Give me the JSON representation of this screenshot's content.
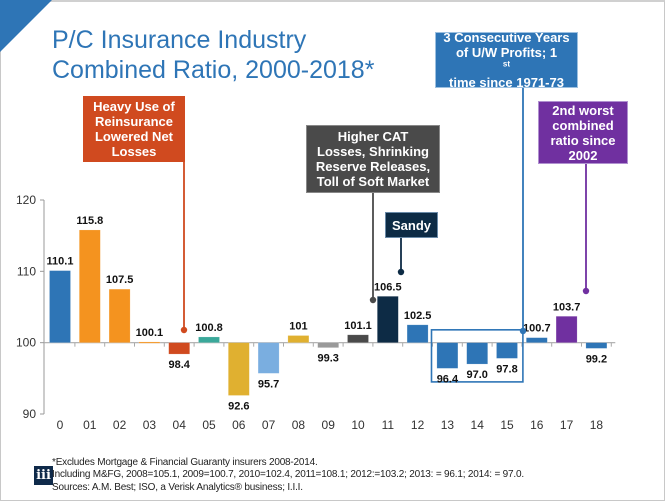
{
  "slide": {
    "title_line1": "P/C Insurance Industry",
    "title_line2": "Combined Ratio, 2000-2018*"
  },
  "callouts": {
    "reinsurance": {
      "lines": [
        "Heavy Use of",
        "Reinsurance",
        "Lowered Net",
        "Losses"
      ],
      "color": "#d04a1f",
      "points_to": "04"
    },
    "cat_losses": {
      "lines": [
        "Higher CAT",
        "Losses, Shrinking",
        "Reserve Releases,",
        "Toll of Soft Market"
      ],
      "color": "#4a4a4a",
      "points_to": "10"
    },
    "sandy": {
      "lines": [
        "Sandy"
      ],
      "color": "#0d2b45",
      "points_to": "11"
    },
    "profits": {
      "line1": "3 Consecutive Years",
      "line2_pre": "of U/W Profits; 1",
      "line2_sup": "st",
      "line3": "time since 1971-73",
      "color": "#2e75b6",
      "points_to": "15"
    },
    "second_worst": {
      "lines": [
        "2nd worst",
        "combined",
        "ratio since",
        "2002"
      ],
      "color": "#7030a0",
      "points_to": "17"
    }
  },
  "chart_data": {
    "type": "bar",
    "title": "P/C Insurance Industry Combined Ratio, 2000-2018*",
    "xlabel": "",
    "ylabel": "",
    "baseline": 100,
    "ylim": [
      90,
      120
    ],
    "yticks": [
      90,
      100,
      110,
      120
    ],
    "grid": false,
    "categories": [
      "0",
      "01",
      "02",
      "03",
      "04",
      "05",
      "06",
      "07",
      "08",
      "09",
      "10",
      "11",
      "12",
      "13",
      "14",
      "15",
      "16",
      "17",
      "18"
    ],
    "values": [
      110.1,
      115.8,
      107.5,
      100.1,
      98.4,
      100.8,
      92.6,
      95.7,
      101,
      99.3,
      101.1,
      106.5,
      102.5,
      96.4,
      97.0,
      97.8,
      100.7,
      103.7,
      99.2
    ],
    "labels": [
      "110.1",
      "115.8",
      "107.5",
      "100.1",
      "98.4",
      "100.8",
      "92.6",
      "95.7",
      "101",
      "99.3",
      "101.1",
      "106.5",
      "102.5",
      "96.4",
      "97.0",
      "97.8",
      "100.7",
      "103.7",
      "99.2"
    ],
    "colors": [
      "#2e75b6",
      "#f4931f",
      "#f4931f",
      "#f4931f",
      "#d04a1f",
      "#3aa89a",
      "#e0b030",
      "#7aaee0",
      "#e0b030",
      "#9a9a9a",
      "#4a4a4a",
      "#0d2b45",
      "#2e75b6",
      "#2e75b6",
      "#2e75b6",
      "#2e75b6",
      "#2e75b6",
      "#7030a0",
      "#2e75b6"
    ],
    "highlight_box": {
      "from": "13",
      "to": "15",
      "color": "#2e75b6"
    }
  },
  "footnotes": {
    "line1": "*Excludes Mortgage & Financial Guaranty insurers 2008-2014.",
    "line2": "Including M&FG, 2008=105.1, 2009=100.7, 2010=102.4, 2011=108.1; 2012:=103.2; 2013: = 96.1; 2014: = 97.0.",
    "line3": "Sources: A.M. Best; ISO, a Verisk Analytics® business; I.I.I."
  },
  "logo": {
    "text": "iii"
  }
}
